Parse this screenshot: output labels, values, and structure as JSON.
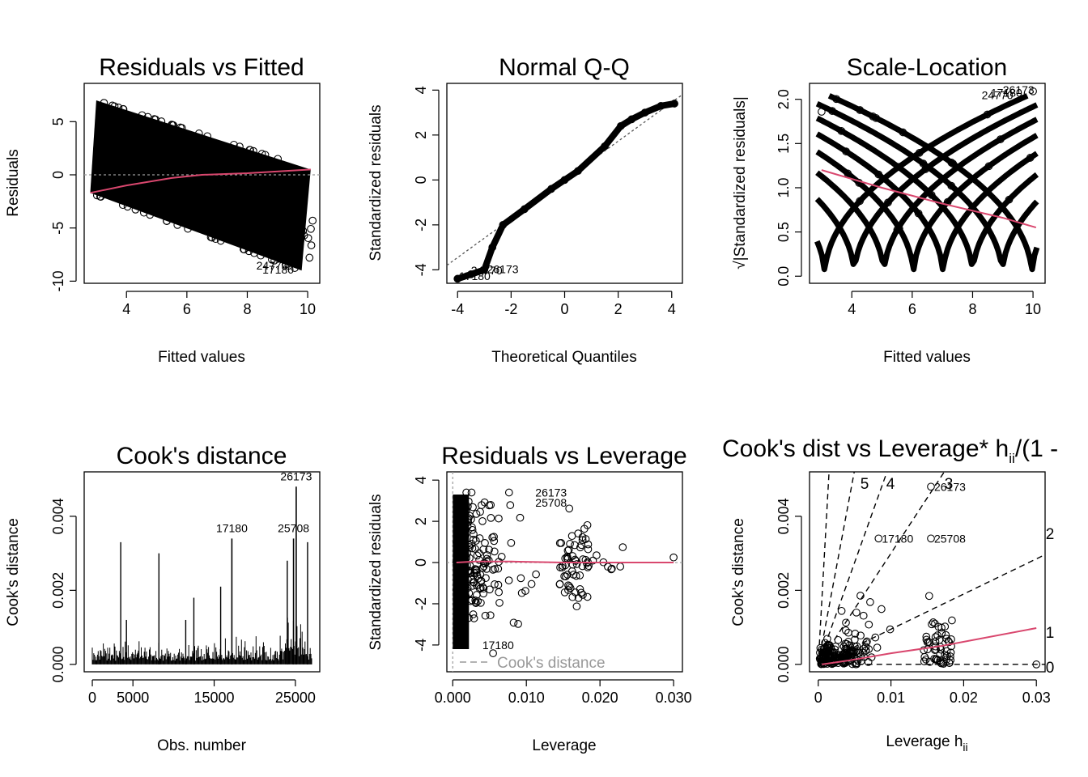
{
  "colors": {
    "smoother": "#D9476E",
    "reference": "#999999",
    "points": "#000000"
  },
  "chart_data": [
    {
      "type": "scatter",
      "title": "Residuals vs Fitted",
      "xlabel": "Fitted values",
      "ylabel": "Residuals",
      "xlim": [
        2.6,
        10.4
      ],
      "ylim": [
        -10.2,
        8.6
      ],
      "xticks": [
        "4",
        "6",
        "8",
        "10"
      ],
      "yticks": [
        "-10",
        "-5",
        "0",
        "5"
      ],
      "point_bands": {
        "upper": [
          [
            3.0,
            7.0
          ],
          [
            10.1,
            0.5
          ]
        ],
        "lower": [
          [
            2.8,
            -1.7
          ],
          [
            9.8,
            -9.0
          ]
        ]
      },
      "smoother": [
        [
          2.8,
          -1.7
        ],
        [
          4.0,
          -1.0
        ],
        [
          5.5,
          -0.3
        ],
        [
          6.5,
          0.0
        ],
        [
          8.0,
          0.15
        ],
        [
          10.1,
          0.5
        ]
      ],
      "reference_line": 0,
      "labels": [
        "24770",
        "17180"
      ]
    },
    {
      "type": "scatter",
      "title": "Normal Q-Q",
      "xlabel": "Theoretical Quantiles",
      "ylabel": "Standardized residuals",
      "xlim": [
        -4.4,
        4.4
      ],
      "ylim": [
        -4.6,
        4.3
      ],
      "xticks": [
        "-4",
        "-2",
        "0",
        "2",
        "4"
      ],
      "yticks": [
        "-4",
        "-2",
        "0",
        "2",
        "4"
      ],
      "qq_curve": [
        [
          -4.0,
          -4.4
        ],
        [
          -3.5,
          -4.2
        ],
        [
          -3.0,
          -4.0
        ],
        [
          -2.7,
          -3.0
        ],
        [
          -2.3,
          -2.0
        ],
        [
          -1.5,
          -1.3
        ],
        [
          -0.5,
          -0.4
        ],
        [
          0,
          0.0
        ],
        [
          0.5,
          0.4
        ],
        [
          1.5,
          1.5
        ],
        [
          2.1,
          2.4
        ],
        [
          2.5,
          2.7
        ],
        [
          3.0,
          3.0
        ],
        [
          3.6,
          3.3
        ],
        [
          4.1,
          3.4
        ]
      ],
      "reference_line": [
        [
          -4.4,
          -3.8
        ],
        [
          4.4,
          3.8
        ]
      ],
      "labels": [
        "17180",
        "24770",
        "26173"
      ]
    },
    {
      "type": "scatter",
      "title": "Scale-Location",
      "xlabel": "Fitted values",
      "ylabel": "√|Standardized residuals|",
      "xlim": [
        2.6,
        10.4
      ],
      "ylim": [
        -0.08,
        2.18
      ],
      "xticks": [
        "4",
        "6",
        "8",
        "10"
      ],
      "yticks": [
        "0.0",
        "0.5",
        "1.0",
        "1.5",
        "2.0"
      ],
      "smoother": [
        [
          3.0,
          1.2
        ],
        [
          5.0,
          1.0
        ],
        [
          7.0,
          0.82
        ],
        [
          9.0,
          0.66
        ],
        [
          10.1,
          0.55
        ]
      ],
      "labels": [
        "24770",
        "17180",
        "26173"
      ]
    },
    {
      "type": "bar",
      "title": "Cook's distance",
      "xlabel": "Obs. number",
      "ylabel": "Cook's distance",
      "xlim": [
        -1000,
        28000
      ],
      "ylim": [
        -0.0002,
        0.0052
      ],
      "xticks": [
        "0",
        "5000",
        "15000",
        "25000"
      ],
      "yticks": [
        "0.000",
        "0.002",
        "0.004"
      ],
      "highlights": [
        {
          "obs": 17180,
          "label": "17180",
          "value": 0.0034
        },
        {
          "obs": 24770,
          "label": "25708",
          "value": 0.0034
        },
        {
          "obs": 25100,
          "label": "26173",
          "value": 0.0048
        }
      ],
      "spikes": [
        {
          "obs": 3500,
          "value": 0.0033
        },
        {
          "obs": 4200,
          "value": 0.0012
        },
        {
          "obs": 8200,
          "value": 0.003
        },
        {
          "obs": 11500,
          "value": 0.0012
        },
        {
          "obs": 12500,
          "value": 0.0018
        },
        {
          "obs": 15800,
          "value": 0.0021
        },
        {
          "obs": 24000,
          "value": 0.0028
        },
        {
          "obs": 26500,
          "value": 0.0033
        }
      ]
    },
    {
      "type": "scatter",
      "title": "Residuals vs Leverage",
      "xlabel": "Leverage",
      "ylabel": "Standardized residuals",
      "xlim": [
        -0.0008,
        0.0312
      ],
      "ylim": [
        -5.3,
        4.4
      ],
      "xticks": [
        "0.000",
        "0.010",
        "0.020",
        "0.030"
      ],
      "yticks": [
        "-4",
        "-2",
        "0",
        "2",
        "4"
      ],
      "legend": "Cook's distance",
      "legend_position": "bottom-left",
      "labels": [
        {
          "label": "26173",
          "x": 0.0155,
          "y": 3.4
        },
        {
          "label": "25708",
          "x": 0.0155,
          "y": 2.9
        },
        {
          "label": "17180",
          "x": 0.0083,
          "y": -4.0
        }
      ],
      "smoother": [
        [
          0.0005,
          0.0
        ],
        [
          0.003,
          0.05
        ],
        [
          0.008,
          0.05
        ],
        [
          0.015,
          0.0
        ],
        [
          0.03,
          0.0
        ]
      ]
    },
    {
      "type": "scatter",
      "title": "Cook's dist vs Leverage* h",
      "title_sub": "ii",
      "title_rest": "/(1 -",
      "xlabel": "Leverage  h",
      "xlabel_sub": "ii",
      "ylabel": "Cook's distance",
      "xlim": [
        -0.0012,
        0.0312
      ],
      "ylim": [
        -0.0002,
        0.0052
      ],
      "xticks": [
        "0",
        "0.01",
        "0.02",
        "0.03"
      ],
      "yticks": [
        "0.000",
        "0.002",
        "0.004"
      ],
      "contour_labels": [
        "5",
        "4",
        "3",
        "2",
        "1",
        "0"
      ],
      "labels": [
        {
          "label": "26173",
          "x": 0.0155,
          "y": 0.0048
        },
        {
          "label": "17180",
          "x": 0.0083,
          "y": 0.0034
        },
        {
          "label": "25708",
          "x": 0.0155,
          "y": 0.0034
        }
      ],
      "smoother": [
        [
          0.0005,
          0.0
        ],
        [
          0.004,
          0.0001
        ],
        [
          0.01,
          0.0003
        ],
        [
          0.017,
          0.0005
        ],
        [
          0.03,
          0.00098
        ]
      ]
    }
  ]
}
